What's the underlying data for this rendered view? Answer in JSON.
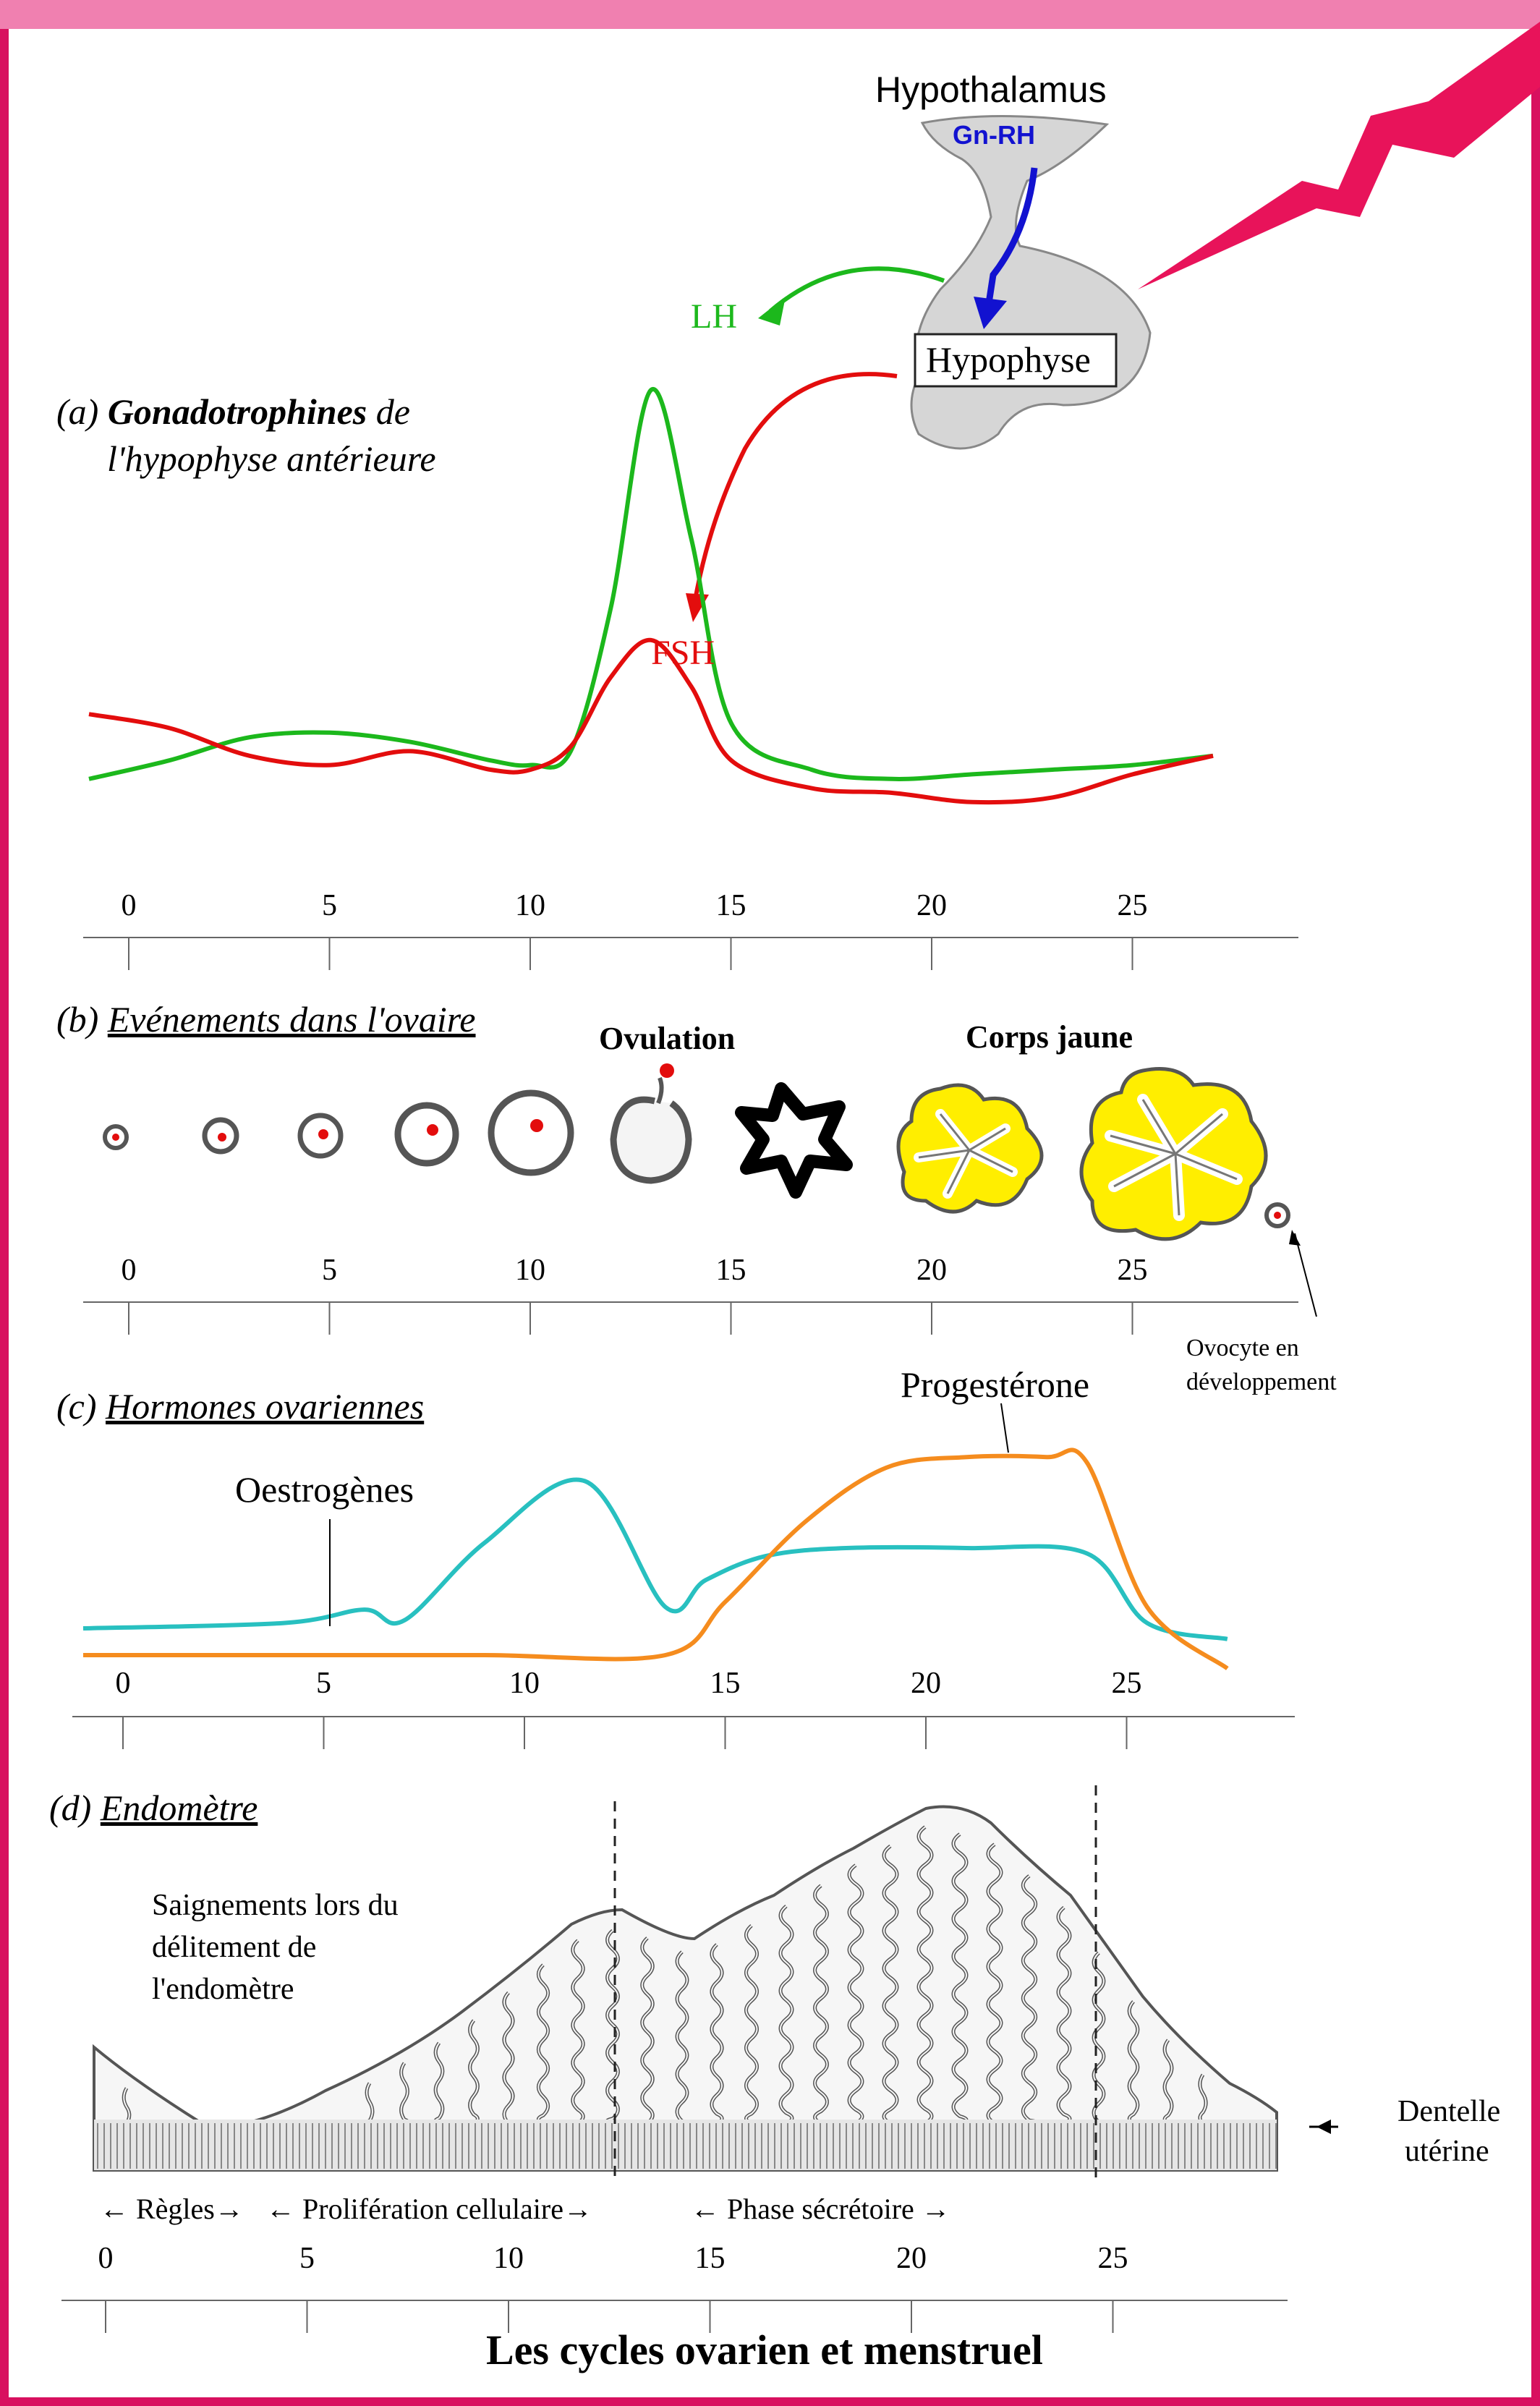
{
  "colors": {
    "frame": "#d8105f",
    "lh": "#1cb81c",
    "fsh": "#e30d0d",
    "oestrogen": "#28c0c0",
    "progesterone": "#f58c1e",
    "gnrh": "#1212d0",
    "corpus": "#ffee00",
    "bolt": "#e8135a"
  },
  "header": {
    "hypothalamus": "Hypothalamus",
    "gnrh": "Gn-RH",
    "hypophyse": "Hypophyse"
  },
  "panel_a": {
    "prefix": "(a)",
    "title_bold": "Gonadotrophines",
    "title_rest": "de",
    "title_line2": "l'hypophyse antérieure",
    "lh_label": "LH",
    "fsh_label": "FSH"
  },
  "panel_b": {
    "prefix": "(b)",
    "title": "Evénements dans l'ovaire",
    "ovulation": "Ovulation",
    "corps_jaune": "Corps jaune",
    "ovocyte_line1": "Ovocyte en",
    "ovocyte_line2": "développement"
  },
  "panel_c": {
    "prefix": "(c)",
    "title": "Hormones ovariennes",
    "oestrogenes": "Oestrogènes",
    "progesterone": "Progestérone"
  },
  "panel_d": {
    "prefix": "(d)",
    "title": "Endomètre",
    "bleed_line1": "Saignements lors du",
    "bleed_line2": "délitement de",
    "bleed_line3": "l'endomètre",
    "dentelle_line1": "Dentelle",
    "dentelle_line2": "utérine",
    "regles": "← Règles→",
    "proliferation": "← Prolifération cellulaire→",
    "secretoire": "← Phase sécrétoire →"
  },
  "axis_ticks": [
    "0",
    "5",
    "10",
    "15",
    "20",
    "25"
  ],
  "footer": {
    "title": "Les cycles ovarien et menstruel"
  },
  "chart_data": {
    "type": "line",
    "x_unit": "days",
    "panel_a": {
      "series": [
        {
          "name": "LH",
          "x": [
            0,
            2,
            4,
            6,
            8,
            10,
            11,
            12,
            13,
            14,
            15,
            16,
            18,
            20,
            22,
            24,
            26,
            28
          ],
          "y": [
            8,
            12,
            17,
            18,
            16,
            12,
            11,
            14,
            45,
            92,
            60,
            20,
            10,
            8,
            9,
            10,
            11,
            13
          ]
        },
        {
          "name": "FSH",
          "x": [
            0,
            2,
            4,
            6,
            8,
            10,
            11,
            12,
            13,
            14,
            15,
            16,
            18,
            20,
            22,
            24,
            26,
            28
          ],
          "y": [
            22,
            19,
            13,
            11,
            14,
            10,
            10,
            15,
            30,
            38,
            28,
            12,
            6,
            5,
            3,
            4,
            9,
            13
          ]
        }
      ]
    },
    "panel_c": {
      "series": [
        {
          "name": "Oestrogènes",
          "x": [
            0,
            5,
            7,
            8,
            10,
            12.5,
            14.5,
            15.5,
            17,
            19,
            22,
            25,
            26.5,
            28.5
          ],
          "y": [
            10,
            12,
            17,
            13,
            42,
            65,
            18,
            28,
            37,
            40,
            40,
            38,
            12,
            6
          ]
        },
        {
          "name": "Progestérone",
          "x": [
            0,
            5,
            10,
            14.5,
            16,
            18,
            20,
            22,
            24,
            25,
            26.5,
            28.5
          ],
          "y": [
            0,
            0,
            0,
            0,
            20,
            50,
            70,
            74,
            74,
            72,
            18,
            -5
          ]
        }
      ]
    }
  }
}
